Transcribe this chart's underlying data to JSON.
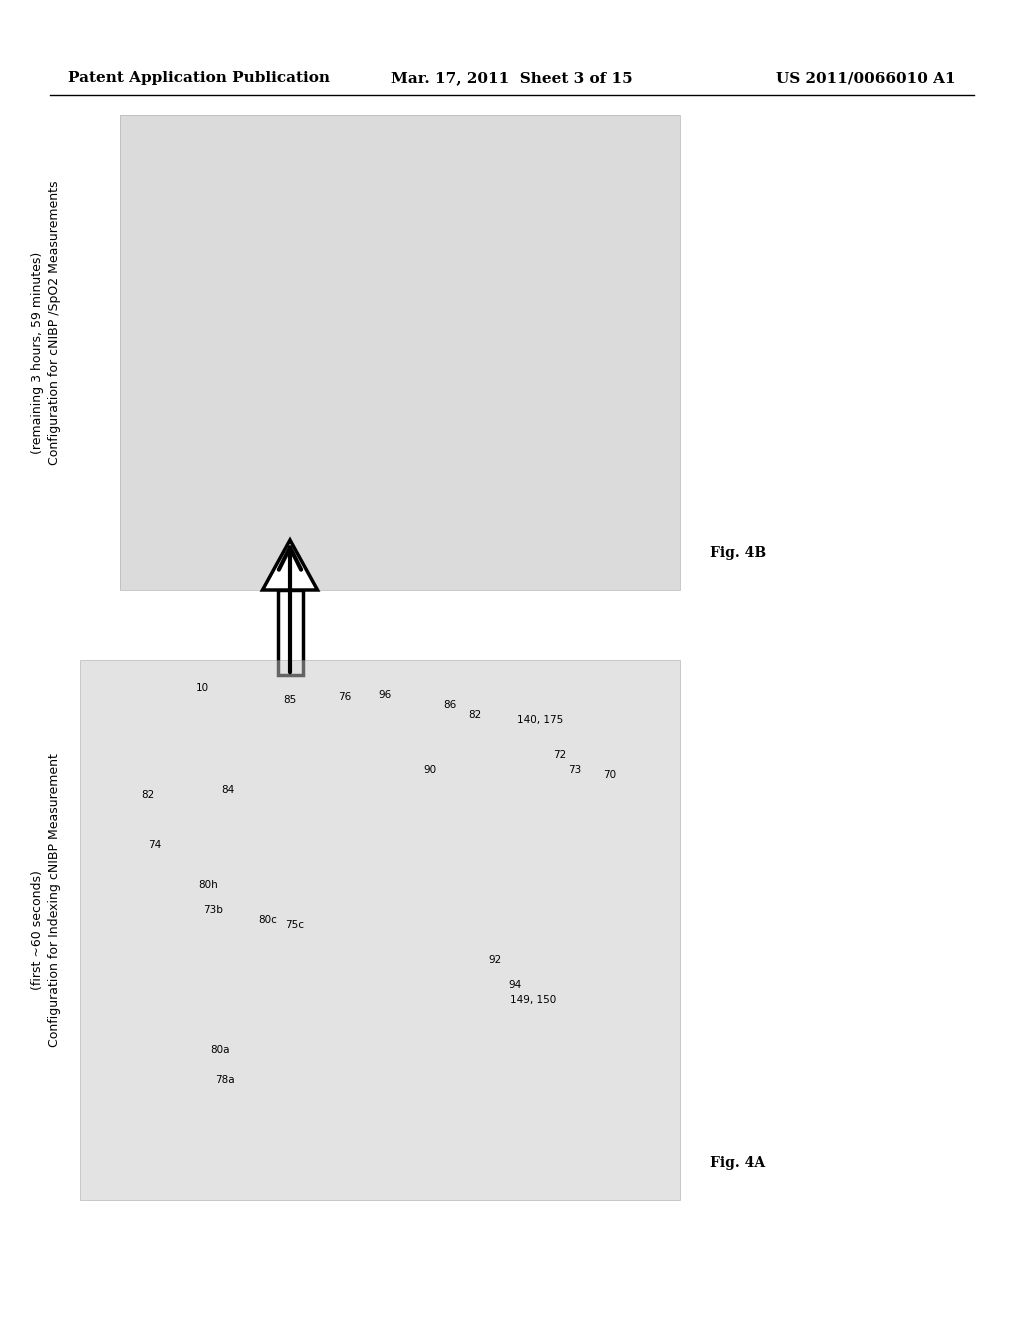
{
  "header_left": "Patent Application Publication",
  "header_center": "Mar. 17, 2011  Sheet 3 of 15",
  "header_right": "US 2011/0066010 A1",
  "fig4A_label": "Fig. 4A",
  "fig4B_label": "Fig. 4B",
  "fig4A_title_line1": "Configuration for Indexing cNIBP Measurement",
  "fig4A_title_line2": "(first ~60 seconds)",
  "fig4B_title_line1": "Configuration for cNIBP /SpO2 Measurements",
  "fig4B_title_line2": "(remaining 3 hours, 59 minutes)",
  "ref_numbers_4A": [
    "10",
    "85",
    "76",
    "96",
    "86",
    "82",
    "140, 175",
    "90",
    "72",
    "73",
    "70",
    "82",
    "84",
    "80h",
    "73b",
    "80c",
    "75c",
    "74",
    "92",
    "94",
    "149, 150",
    "80a",
    "78a"
  ],
  "ref_numbers_4B": [],
  "bg_color": "#ffffff",
  "header_fontsize": 11,
  "label_fontsize": 10,
  "ref_fontsize": 9
}
